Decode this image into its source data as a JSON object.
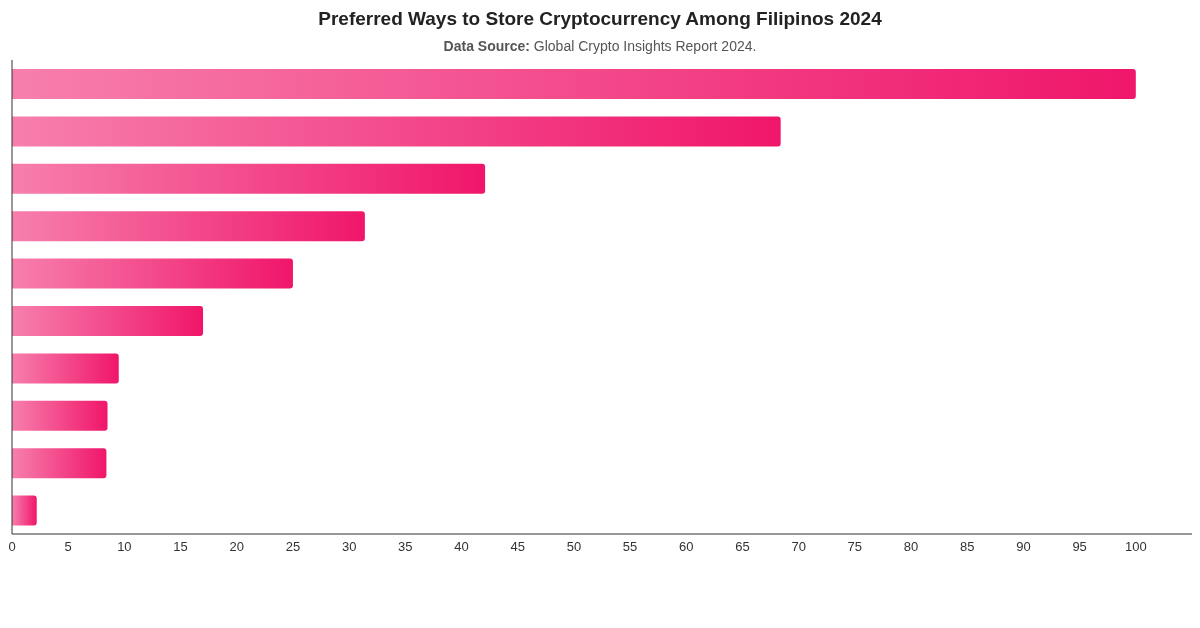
{
  "chart_data": {
    "type": "bar",
    "orientation": "horizontal",
    "title": "Preferred Ways to Store Cryptocurrency Among Filipinos 2024",
    "subtitle": "Data Source: Global Crypto Insights Report 2024.",
    "categories": [
      null,
      null,
      null,
      null,
      null,
      null,
      null,
      null,
      null,
      null
    ],
    "values": [
      100,
      68.4,
      42.1,
      31.4,
      25.0,
      17.0,
      9.5,
      8.5,
      8.4,
      2.2
    ],
    "color": "#f0166a",
    "xlim": [
      0,
      105
    ],
    "xticks": [
      0,
      5,
      10,
      15,
      20,
      25,
      30,
      35,
      40,
      45,
      50,
      55,
      60,
      65,
      70,
      75,
      80,
      85,
      90,
      95,
      100
    ],
    "grid": false,
    "legend": false
  }
}
